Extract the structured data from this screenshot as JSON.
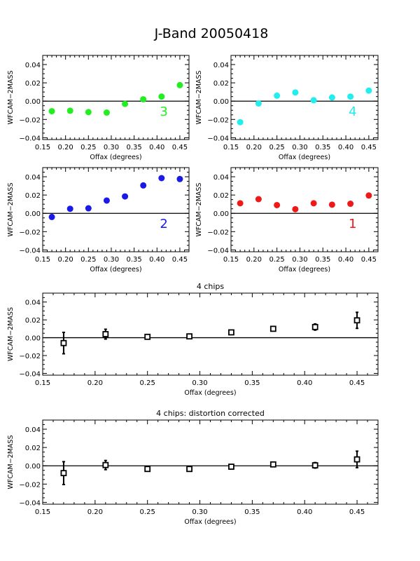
{
  "page_title": "J-Band 20050418",
  "chart_data": [
    {
      "type": "scatter",
      "title": "",
      "annotation": "3",
      "marker": "filled-circle",
      "color": "#22ee22",
      "xlabel": "Offax (degrees)",
      "ylabel": "WFCAM−2MASS",
      "xlim": [
        0.15,
        0.47
      ],
      "ylim": [
        -0.042,
        0.05
      ],
      "xticks": [
        0.15,
        0.2,
        0.25,
        0.3,
        0.35,
        0.4,
        0.45
      ],
      "xtick_labels": [
        "0.15",
        "0.20",
        "0.25",
        "0.30",
        "0.35",
        "0.40",
        "0.45"
      ],
      "yticks": [
        -0.04,
        -0.02,
        0.0,
        0.02,
        0.04
      ],
      "ytick_labels": [
        "−0.04",
        "−0.02",
        "0.00",
        "0.02",
        "0.04"
      ],
      "reference_line": 0.0,
      "x": [
        0.17,
        0.21,
        0.25,
        0.29,
        0.33,
        0.37,
        0.41,
        0.45
      ],
      "y": [
        -0.011,
        -0.0105,
        -0.012,
        -0.0125,
        -0.003,
        0.002,
        0.005,
        0.0175
      ]
    },
    {
      "type": "scatter",
      "title": "",
      "annotation": "4",
      "marker": "filled-circle",
      "color": "#22eeee",
      "xlabel": "Offax (degrees)",
      "ylabel": "WFCAM−2MASS",
      "xlim": [
        0.15,
        0.47
      ],
      "ylim": [
        -0.042,
        0.05
      ],
      "xticks": [
        0.15,
        0.2,
        0.25,
        0.3,
        0.35,
        0.4,
        0.45
      ],
      "xtick_labels": [
        "0.15",
        "0.20",
        "0.25",
        "0.30",
        "0.35",
        "0.40",
        "0.45"
      ],
      "yticks": [
        -0.04,
        -0.02,
        0.0,
        0.02,
        0.04
      ],
      "ytick_labels": [
        "−0.04",
        "−0.02",
        "0.00",
        "0.02",
        "0.04"
      ],
      "reference_line": 0.0,
      "x": [
        0.17,
        0.21,
        0.25,
        0.29,
        0.33,
        0.37,
        0.41,
        0.45
      ],
      "y": [
        -0.023,
        -0.0025,
        0.006,
        0.0095,
        0.001,
        0.004,
        0.005,
        0.0115
      ]
    },
    {
      "type": "scatter",
      "title": "",
      "annotation": "2",
      "marker": "filled-circle",
      "color": "#1a1ae6",
      "xlabel": "Offax (degrees)",
      "ylabel": "WFCAM−2MASS",
      "xlim": [
        0.15,
        0.47
      ],
      "ylim": [
        -0.042,
        0.05
      ],
      "xticks": [
        0.15,
        0.2,
        0.25,
        0.3,
        0.35,
        0.4,
        0.45
      ],
      "xtick_labels": [
        "0.15",
        "0.20",
        "0.25",
        "0.30",
        "0.35",
        "0.40",
        "0.45"
      ],
      "yticks": [
        -0.04,
        -0.02,
        0.0,
        0.02,
        0.04
      ],
      "ytick_labels": [
        "−0.04",
        "−0.02",
        "0.00",
        "0.02",
        "0.04"
      ],
      "reference_line": 0.0,
      "x": [
        0.17,
        0.21,
        0.25,
        0.29,
        0.33,
        0.37,
        0.41,
        0.45
      ],
      "y": [
        -0.004,
        0.005,
        0.0055,
        0.014,
        0.0185,
        0.0305,
        0.0385,
        0.0375
      ]
    },
    {
      "type": "scatter",
      "title": "",
      "annotation": "1",
      "marker": "filled-circle",
      "color": "#ee1a1a",
      "xlabel": "Offax (degrees)",
      "ylabel": "WFCAM−2MASS",
      "xlim": [
        0.15,
        0.47
      ],
      "ylim": [
        -0.042,
        0.05
      ],
      "xticks": [
        0.15,
        0.2,
        0.25,
        0.3,
        0.35,
        0.4,
        0.45
      ],
      "xtick_labels": [
        "0.15",
        "0.20",
        "0.25",
        "0.30",
        "0.35",
        "0.40",
        "0.45"
      ],
      "yticks": [
        -0.04,
        -0.02,
        0.0,
        0.02,
        0.04
      ],
      "ytick_labels": [
        "−0.04",
        "−0.02",
        "0.00",
        "0.02",
        "0.04"
      ],
      "reference_line": 0.0,
      "x": [
        0.17,
        0.21,
        0.25,
        0.29,
        0.33,
        0.37,
        0.41,
        0.45
      ],
      "y": [
        0.011,
        0.0155,
        0.009,
        0.0045,
        0.011,
        0.0095,
        0.0105,
        0.0195
      ]
    },
    {
      "type": "scatter",
      "title": "4 chips",
      "annotation": "",
      "marker": "open-square",
      "color": "#000000",
      "xlabel": "Offax (degrees)",
      "ylabel": "WFCAM−2MASS",
      "xlim": [
        0.15,
        0.47
      ],
      "ylim": [
        -0.042,
        0.05
      ],
      "xticks": [
        0.15,
        0.2,
        0.25,
        0.3,
        0.35,
        0.4,
        0.45
      ],
      "xtick_labels": [
        "0.15",
        "0.20",
        "0.25",
        "0.30",
        "0.35",
        "0.40",
        "0.45"
      ],
      "yticks": [
        -0.04,
        -0.02,
        0.0,
        0.02,
        0.04
      ],
      "ytick_labels": [
        "−0.04",
        "−0.02",
        "0.00",
        "0.02",
        "0.04"
      ],
      "reference_line": 0.0,
      "x": [
        0.17,
        0.21,
        0.25,
        0.29,
        0.33,
        0.37,
        0.41,
        0.45
      ],
      "y": [
        -0.006,
        0.004,
        0.001,
        0.0015,
        0.006,
        0.01,
        0.012,
        0.0195
      ],
      "yerr": [
        0.012,
        0.0055,
        0.001,
        0.001,
        0.002,
        0.001,
        0.0035,
        0.009
      ]
    },
    {
      "type": "scatter",
      "title": "4 chips: distortion corrected",
      "annotation": "",
      "marker": "open-square",
      "color": "#000000",
      "xlabel": "Offax (degrees)",
      "ylabel": "WFCAM−2MASS",
      "xlim": [
        0.15,
        0.47
      ],
      "ylim": [
        -0.042,
        0.05
      ],
      "xticks": [
        0.15,
        0.2,
        0.25,
        0.3,
        0.35,
        0.4,
        0.45
      ],
      "xtick_labels": [
        "0.15",
        "0.20",
        "0.25",
        "0.30",
        "0.35",
        "0.40",
        "0.45"
      ],
      "yticks": [
        -0.04,
        -0.02,
        0.0,
        0.02,
        0.04
      ],
      "ytick_labels": [
        "−0.04",
        "−0.02",
        "0.00",
        "0.02",
        "0.04"
      ],
      "reference_line": 0.0,
      "x": [
        0.17,
        0.21,
        0.25,
        0.29,
        0.33,
        0.37,
        0.41,
        0.45
      ],
      "y": [
        -0.008,
        0.0008,
        -0.0035,
        -0.0035,
        -0.001,
        0.0015,
        0.0005,
        0.007
      ],
      "yerr": [
        0.0125,
        0.005,
        0.001,
        0.001,
        0.002,
        0.001,
        0.003,
        0.009
      ]
    }
  ]
}
